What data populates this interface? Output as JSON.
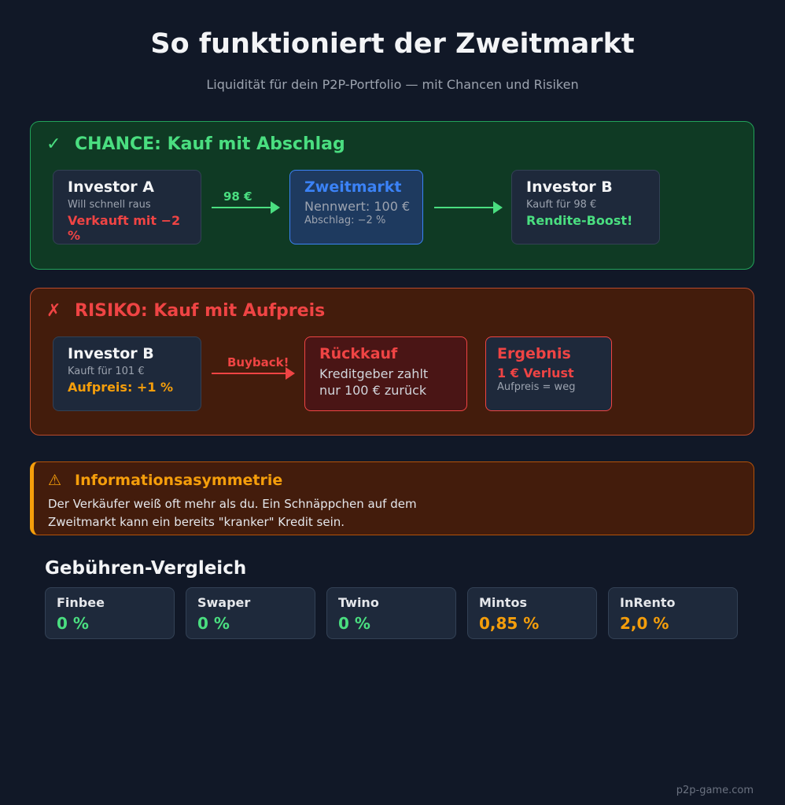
{
  "title": "So funktioniert der Zweitmarkt",
  "subtitle": "Liquidität für dein P2P-Portfolio — mit Chancen und Risiken",
  "chance": {
    "mark": "✓",
    "heading": "CHANCE: Kauf mit Abschlag",
    "seller": {
      "title": "Investor A",
      "sub": "Will schnell raus",
      "value": "Verkauft mit −2 %"
    },
    "arrow_label": "98 €",
    "market": {
      "title": "Zweitmarkt",
      "line1": "Nennwert: 100 €",
      "line2": "Abschlag: −2 %"
    },
    "buyer": {
      "title": "Investor B",
      "sub": "Kauft für 98 €",
      "value": "Rendite-Boost!"
    }
  },
  "risk": {
    "mark": "✗",
    "heading": "RISIKO: Kauf mit Aufpreis",
    "buyer": {
      "title": "Investor B",
      "sub": "Kauft für 101 €",
      "value": "Aufpreis: +1 %"
    },
    "arrow_label": "Buyback!",
    "buyback": {
      "title": "Rückkauf",
      "line1": "Kreditgeber zahlt",
      "line2": "nur 100 € zurück"
    },
    "result": {
      "title": "Ergebnis",
      "value": "1 € Verlust",
      "sub": "Aufpreis = weg"
    }
  },
  "warning": {
    "mark": "⚠",
    "heading": "Informationsasymmetrie",
    "line1": "Der Verkäufer weiß oft mehr als du. Ein Schnäppchen auf dem",
    "line2": "Zweitmarkt kann ein bereits \"kranker\" Kredit sein."
  },
  "fees": {
    "title": "Gebühren-Vergleich",
    "items": [
      {
        "name": "Finbee",
        "value": "0 %"
      },
      {
        "name": "Swaper",
        "value": "0 %"
      },
      {
        "name": "Twino",
        "value": "0 %"
      },
      {
        "name": "Mintos",
        "value": "0,85 %"
      },
      {
        "name": "InRento",
        "value": "2,0 %"
      }
    ]
  },
  "colors": {
    "positive": "#4ade80",
    "negative": "#ef4444",
    "warning": "#f59e0b",
    "accent": "#3b82f6"
  },
  "footer": "p2p-game.com"
}
